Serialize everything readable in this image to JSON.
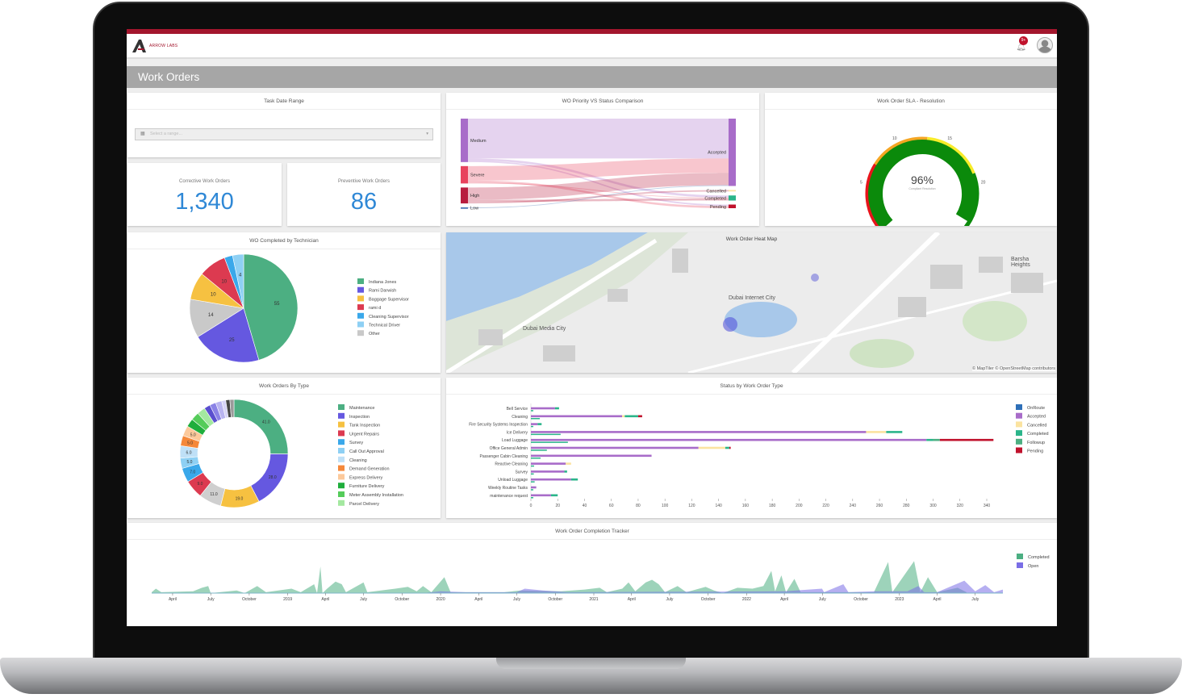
{
  "app": {
    "brand": "ARROW LABS",
    "notification_count": "9+",
    "page_title": "Work Orders"
  },
  "date_range": {
    "title": "Task Date Range",
    "placeholder": "Select a range..."
  },
  "stats": {
    "corrective": {
      "label": "Corrective Work Orders",
      "value": "1,340"
    },
    "preventive": {
      "label": "Preventive Work Orders",
      "value": "86"
    }
  },
  "map": {
    "title": "Work Order Heat Map",
    "labels": [
      "Dubai Internet City",
      "Dubai Media City",
      "Barsha Heights"
    ],
    "attribution": "© MapTiler © OpenStreetMap contributors"
  },
  "colors": {
    "accent": "#a3162d",
    "stat": "#2f88d6",
    "header_bar": "#a6a6a6"
  },
  "chart_data": [
    {
      "id": "sankey",
      "type": "sankey",
      "title": "WO Priority VS Status Comparison",
      "sources": [
        {
          "name": "Medium",
          "color": "#a86cc9"
        },
        {
          "name": "Severe",
          "color": "#e8435e"
        },
        {
          "name": "High",
          "color": "#b81d3f"
        },
        {
          "name": "Low",
          "color": "#2e5fa8"
        }
      ],
      "targets": [
        {
          "name": "Accepted",
          "color": "#a86cc9"
        },
        {
          "name": "Cancelled",
          "color": "#fbe3a0"
        },
        {
          "name": "Completed",
          "color": "#2bb58a"
        },
        {
          "name": "Pending",
          "color": "#c0122c"
        }
      ],
      "links": [
        [
          "Medium",
          "Accepted",
          55
        ],
        [
          "Medium",
          "Completed",
          3
        ],
        [
          "Medium",
          "Pending",
          2
        ],
        [
          "Severe",
          "Accepted",
          20
        ],
        [
          "Severe",
          "Pending",
          3
        ],
        [
          "Severe",
          "Completed",
          1
        ],
        [
          "High",
          "Accepted",
          17
        ],
        [
          "High",
          "Completed",
          3
        ],
        [
          "High",
          "Cancelled",
          2
        ],
        [
          "Low",
          "Accepted",
          1
        ]
      ]
    },
    {
      "id": "gauge",
      "type": "gauge",
      "title": "Work Order SLA - Resolution",
      "value": 96,
      "value_label": "96%",
      "sublabel": "Compliant Resolution",
      "ticks": [
        "0",
        "5",
        "10",
        "15",
        "20",
        "25"
      ],
      "bands": [
        {
          "from": 0,
          "to": 7,
          "color": "#e8141b"
        },
        {
          "from": 7,
          "to": 13,
          "color": "#f5a623"
        },
        {
          "from": 13,
          "to": 19,
          "color": "#f8ec2a"
        },
        {
          "from": 19,
          "to": 25,
          "color": "#0b8a0b"
        }
      ],
      "fill_color": "#0b8a0b"
    },
    {
      "id": "pie",
      "type": "pie",
      "title": "WO Completed by Technician",
      "slices": [
        {
          "name": "Indiana Jones",
          "value": 55,
          "color": "#4caf82"
        },
        {
          "name": "Rami Darwish",
          "value": 25,
          "color": "#6558e0"
        },
        {
          "name": "Other",
          "value": 14,
          "color": "#c9c9c9"
        },
        {
          "name": "Baggage Supervisor",
          "value": 10,
          "color": "#f6c141"
        },
        {
          "name": "rami d",
          "value": 10,
          "color": "#dc3a50"
        },
        {
          "name": "Cleaning Supervisor",
          "value": 3,
          "color": "#3aa8ea"
        },
        {
          "name": "Technical Driver",
          "value": 4,
          "color": "#8ed0f4"
        }
      ],
      "legend": [
        "Indiana Jones",
        "Rami Darwish",
        "Baggage Supervisor",
        "rami d",
        "Cleaning Supervisor",
        "Technical Driver",
        "Other"
      ],
      "legend_position": "right"
    },
    {
      "id": "donut",
      "type": "pie",
      "title": "Work Orders By Type",
      "slices": [
        {
          "name": "Maintenance",
          "value": 41,
          "label": "41.0",
          "color": "#4caf82"
        },
        {
          "name": "Inspection",
          "value": 28,
          "label": "28.0",
          "color": "#6558e0"
        },
        {
          "name": "Tank Inspection",
          "value": 19,
          "label": "19.0",
          "color": "#f6c141"
        },
        {
          "value": 11,
          "label": "11.0",
          "color": "#cfcfcf"
        },
        {
          "name": "Urgent Repairs",
          "value": 9,
          "label": "9.0",
          "color": "#dc3a50"
        },
        {
          "name": "Survey",
          "value": 7,
          "label": "7.0",
          "color": "#3aa8ea"
        },
        {
          "name": "Call Out Approval",
          "value": 5,
          "label": "5.0",
          "color": "#8ed0f4"
        },
        {
          "name": "Cleaning",
          "value": 6,
          "label": "6.0",
          "color": "#bfe0f7"
        },
        {
          "name": "Demand Generation",
          "value": 5,
          "label": "5.0",
          "color": "#f5883a"
        },
        {
          "name": "Express Delivery",
          "value": 5,
          "label": "5.0",
          "color": "#fcc99b"
        },
        {
          "name": "Furniture Delivery",
          "value": 4,
          "color": "#1fae3c"
        },
        {
          "name": "Meter Assembly Installation",
          "value": 4,
          "color": "#55cc5a"
        },
        {
          "name": "Parcel Delivery",
          "value": 4,
          "color": "#a4e8a0"
        },
        {
          "value": 3,
          "color": "#5a4fcf"
        },
        {
          "value": 3,
          "color": "#8b83e6"
        },
        {
          "value": 3,
          "color": "#b9b4f0"
        },
        {
          "value": 2,
          "color": "#d7d4f7"
        },
        {
          "value": 2,
          "color": "#444444"
        },
        {
          "value": 2,
          "color": "#9a9a9a"
        }
      ],
      "legend": [
        "Maintenance",
        "Inspection",
        "Tank Inspection",
        "Urgent Repairs",
        "Survey",
        "Call Out Approval",
        "Cleaning",
        "Demand Generation",
        "Express Delivery",
        "Furniture Delivery",
        "Meter Assembly Installation",
        "Parcel Delivery"
      ],
      "legend_position": "right"
    },
    {
      "id": "bars",
      "type": "bar",
      "orientation": "horizontal",
      "stacked": true,
      "title": "Status by Work Order Type",
      "categories": [
        "Bell Service",
        "Cleaning",
        "Fire Security Systems Inspection",
        "Ice Delivery",
        "Load Luggage",
        "Office General Admin",
        "Passenger Cabin Cleaning",
        "Reactive Cleaning",
        "Survey",
        "Unload Luggage",
        "Weekly Routine Tasks",
        "maintenance request"
      ],
      "series": [
        {
          "name": "OnRoute",
          "color": "#2e6fb8",
          "values": [
            0,
            0,
            0,
            0,
            0,
            0,
            0,
            0,
            0,
            0,
            0,
            0
          ]
        },
        {
          "name": "Accepted",
          "color": "#a86cc9",
          "values": [
            18,
            68,
            5,
            250,
            295,
            125,
            90,
            26,
            25,
            30,
            4,
            15
          ]
        },
        {
          "name": "Cancelled",
          "color": "#fbe3a0",
          "values": [
            0,
            2,
            0,
            15,
            0,
            20,
            0,
            4,
            0,
            0,
            0,
            0
          ]
        },
        {
          "name": "Completed",
          "color": "#2bb58a",
          "values": [
            3,
            10,
            3,
            12,
            5,
            3,
            0,
            0,
            2,
            5,
            0,
            5
          ]
        },
        {
          "name": "Followup",
          "color": "#4caf82",
          "values": [
            0,
            0,
            0,
            0,
            5,
            0,
            0,
            0,
            0,
            0,
            0,
            0
          ]
        },
        {
          "name": "Pending",
          "color": "#c0122c",
          "values": [
            0,
            3,
            0,
            0,
            40,
            1,
            0,
            0,
            0,
            0,
            0,
            0
          ]
        }
      ],
      "xticks": [
        0,
        20,
        40,
        60,
        80,
        100,
        120,
        140,
        160,
        180,
        200,
        220,
        240,
        260,
        280,
        300,
        320,
        340
      ],
      "xlim": [
        0,
        340
      ],
      "legend_position": "right"
    },
    {
      "id": "tracker",
      "type": "area",
      "title": "Work Order Completion Tracker",
      "xlim": [
        "2018-02-10",
        "2023-09-05"
      ],
      "xticks": [
        [
          "2018-04-01",
          "April"
        ],
        [
          "2018-07-01",
          "July"
        ],
        [
          "2018-10-01",
          "October"
        ],
        [
          "2019-01-01",
          "2019"
        ],
        [
          "2019-04-01",
          "April"
        ],
        [
          "2019-07-01",
          "July"
        ],
        [
          "2019-10-01",
          "October"
        ],
        [
          "2020-01-01",
          "2020"
        ],
        [
          "2020-04-01",
          "April"
        ],
        [
          "2020-07-01",
          "July"
        ],
        [
          "2020-10-01",
          "October"
        ],
        [
          "2021-01-01",
          "2021"
        ],
        [
          "2021-04-01",
          "April"
        ],
        [
          "2021-07-01",
          "July"
        ],
        [
          "2021-10-01",
          "October"
        ],
        [
          "2022-01-01",
          "2022"
        ],
        [
          "2022-04-01",
          "April"
        ],
        [
          "2022-07-01",
          "July"
        ],
        [
          "2022-10-01",
          "October"
        ],
        [
          "2023-01-01",
          "2023"
        ],
        [
          "2023-04-01",
          "April"
        ],
        [
          "2023-07-01",
          "July"
        ]
      ],
      "series": [
        {
          "name": "Completed",
          "color": "#4caf82",
          "points": [
            [
              "2018-02-10",
              1
            ],
            [
              "2018-02-20",
              5
            ],
            [
              "2018-03-05",
              1
            ],
            [
              "2018-05-20",
              2
            ],
            [
              "2018-06-10",
              6
            ],
            [
              "2018-06-25",
              8
            ],
            [
              "2018-07-01",
              0
            ],
            [
              "2018-09-01",
              3
            ],
            [
              "2018-09-20",
              0
            ],
            [
              "2018-10-20",
              8
            ],
            [
              "2018-11-10",
              1
            ],
            [
              "2019-01-10",
              5
            ],
            [
              "2019-02-01",
              1
            ],
            [
              "2019-03-05",
              10
            ],
            [
              "2019-03-12",
              0
            ],
            [
              "2019-03-20",
              30
            ],
            [
              "2019-03-25",
              0
            ],
            [
              "2019-04-05",
              5
            ],
            [
              "2019-04-25",
              13
            ],
            [
              "2019-05-10",
              10
            ],
            [
              "2019-05-20",
              1
            ],
            [
              "2019-07-01",
              12
            ],
            [
              "2019-07-10",
              1
            ],
            [
              "2019-09-15",
              5
            ],
            [
              "2019-10-15",
              7
            ],
            [
              "2019-11-05",
              2
            ],
            [
              "2019-11-20",
              8
            ],
            [
              "2019-12-10",
              1
            ],
            [
              "2020-01-10",
              18
            ],
            [
              "2020-01-25",
              1
            ],
            [
              "2020-06-01",
              1
            ],
            [
              "2020-07-10",
              3
            ],
            [
              "2020-10-15",
              2
            ],
            [
              "2020-12-10",
              4
            ],
            [
              "2021-01-15",
              6
            ],
            [
              "2021-02-01",
              1
            ],
            [
              "2021-03-10",
              5
            ],
            [
              "2021-03-25",
              12
            ],
            [
              "2021-04-10",
              2
            ],
            [
              "2021-05-05",
              12
            ],
            [
              "2021-05-20",
              15
            ],
            [
              "2021-06-05",
              10
            ],
            [
              "2021-06-20",
              1
            ],
            [
              "2021-07-20",
              8
            ],
            [
              "2021-08-10",
              1
            ],
            [
              "2021-09-25",
              7
            ],
            [
              "2021-10-15",
              3
            ],
            [
              "2021-11-05",
              0
            ],
            [
              "2021-12-10",
              6
            ],
            [
              "2022-01-15",
              5
            ],
            [
              "2022-02-10",
              8
            ],
            [
              "2022-03-01",
              25
            ],
            [
              "2022-03-10",
              2
            ],
            [
              "2022-03-25",
              20
            ],
            [
              "2022-04-05",
              1
            ],
            [
              "2022-04-25",
              16
            ],
            [
              "2022-05-10",
              1
            ],
            [
              "2022-11-01",
              1
            ],
            [
              "2022-12-05",
              35
            ],
            [
              "2022-12-15",
              1
            ],
            [
              "2023-02-05",
              36
            ],
            [
              "2023-02-20",
              1
            ],
            [
              "2023-03-10",
              18
            ],
            [
              "2023-04-01",
              1
            ],
            [
              "2023-05-20",
              6
            ],
            [
              "2023-06-10",
              1
            ]
          ]
        },
        {
          "name": "Open",
          "color": "#7a6ee6",
          "points": [
            [
              "2019-11-20",
              0
            ],
            [
              "2020-01-01",
              2
            ],
            [
              "2020-03-01",
              1
            ],
            [
              "2020-07-01",
              1
            ],
            [
              "2020-07-20",
              5
            ],
            [
              "2020-09-01",
              3
            ],
            [
              "2020-11-01",
              1
            ],
            [
              "2022-04-01",
              2
            ],
            [
              "2022-06-30",
              5
            ],
            [
              "2022-07-05",
              1
            ],
            [
              "2022-08-20",
              10
            ],
            [
              "2022-09-01",
              1
            ],
            [
              "2022-11-01",
              2
            ],
            [
              "2023-01-20",
              2
            ],
            [
              "2023-02-15",
              8
            ],
            [
              "2023-03-01",
              1
            ],
            [
              "2023-04-01",
              1
            ],
            [
              "2023-06-05",
              14
            ],
            [
              "2023-07-01",
              2
            ],
            [
              "2023-07-25",
              9
            ],
            [
              "2023-08-15",
              1
            ],
            [
              "2023-09-05",
              4
            ]
          ]
        }
      ],
      "legend_position": "right"
    }
  ]
}
